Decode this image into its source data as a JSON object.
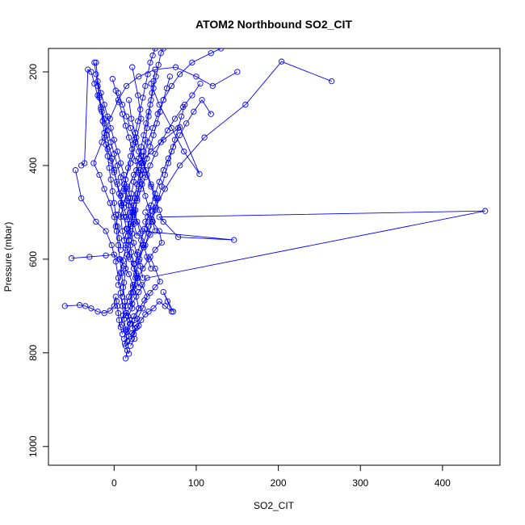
{
  "chart_data": {
    "type": "line",
    "title": "ATOM2 Northbound SO2_CIT",
    "xlabel": "SO2_CIT",
    "ylabel": "Pressure (mbar)",
    "xlim": [
      -80,
      470
    ],
    "ylim": [
      1040,
      150
    ],
    "y_inverted": true,
    "grid": false,
    "legend": "none",
    "marker": "open-circle",
    "x_ticks": [
      0,
      100,
      200,
      300,
      400
    ],
    "y_ticks": [
      200,
      400,
      600,
      800,
      1000
    ],
    "color": "#0000ff",
    "series": [
      {
        "x": [
          14,
          16,
          13,
          18,
          15,
          20,
          17,
          22,
          19,
          21,
          25,
          28,
          24,
          31,
          36,
          44,
          38,
          47,
          52,
          45,
          39,
          33,
          27,
          21,
          18
        ],
        "y": [
          812,
          795,
          780,
          765,
          750,
          738,
          722,
          705,
          690,
          672,
          655,
          640,
          620,
          600,
          575,
          548,
          520,
          498,
          470,
          440,
          410,
          380,
          340,
          300,
          260
        ]
      },
      {
        "x": [
          18,
          14,
          21,
          26,
          19,
          15,
          22,
          30,
          40,
          452,
          55,
          78,
          146,
          35,
          24,
          17,
          12,
          20,
          26,
          33,
          29,
          22
        ],
        "y": [
          802,
          785,
          770,
          748,
          730,
          715,
          695,
          670,
          640,
          497,
          510,
          553,
          559,
          540,
          505,
          470,
          440,
          395,
          350,
          300,
          250,
          190
        ]
      },
      {
        "x": [
          20,
          25,
          22,
          30,
          28,
          35,
          40,
          34,
          27,
          20,
          14,
          10,
          8,
          12,
          16,
          24,
          33,
          45,
          60,
          80,
          104,
          85,
          70,
          55,
          45
        ],
        "y": [
          785,
          770,
          758,
          742,
          727,
          705,
          680,
          655,
          630,
          600,
          570,
          540,
          510,
          480,
          450,
          420,
          395,
          370,
          345,
          318,
          418,
          370,
          320,
          270,
          225
        ]
      },
      {
        "x": [
          10,
          8,
          6,
          5,
          4,
          3,
          2,
          0,
          -5,
          -12,
          -20,
          -28,
          -35,
          -42,
          -60
        ],
        "y": [
          760,
          745,
          730,
          715,
          700,
          690,
          680,
          700,
          710,
          715,
          712,
          705,
          700,
          698,
          700
        ]
      },
      {
        "x": [
          22,
          25,
          30,
          27,
          23,
          18,
          12,
          6,
          0,
          -10,
          -30,
          -52
        ],
        "y": [
          748,
          730,
          705,
          680,
          655,
          632,
          615,
          600,
          590,
          592,
          595,
          598
        ]
      },
      {
        "x": [
          16,
          14,
          12,
          10,
          8,
          5,
          2,
          -3,
          -10,
          -22,
          -40,
          -47
        ],
        "y": [
          775,
          752,
          728,
          700,
          672,
          640,
          605,
          570,
          540,
          520,
          470,
          410
        ]
      },
      {
        "x": [
          24,
          28,
          33,
          38,
          42,
          48,
          55,
          62,
          70,
          65,
          60,
          72
        ],
        "y": [
          760,
          745,
          730,
          718,
          712,
          705,
          690,
          700,
          712,
          690,
          670,
          712
        ]
      },
      {
        "x": [
          12,
          15,
          19,
          24,
          30,
          37,
          44,
          50,
          56,
          50,
          44
        ],
        "y": [
          770,
          755,
          738,
          722,
          705,
          688,
          672,
          660,
          648,
          620,
          595
        ]
      },
      {
        "x": [
          9,
          11,
          14,
          18,
          23,
          29,
          35,
          42,
          50,
          58,
          55,
          47,
          38
        ],
        "y": [
          740,
          720,
          700,
          680,
          660,
          640,
          620,
          600,
          580,
          565,
          540,
          520,
          500
        ]
      },
      {
        "x": [
          15,
          13,
          11,
          9,
          7,
          5,
          3,
          0,
          -5,
          -12,
          -18,
          -25,
          -15,
          -5,
          5,
          15,
          30,
          50,
          75,
          100,
          120,
          150
        ],
        "y": [
          720,
          690,
          660,
          630,
          600,
          570,
          540,
          510,
          480,
          450,
          420,
          395,
          350,
          300,
          260,
          230,
          210,
          195,
          190,
          210,
          230,
          200
        ]
      },
      {
        "x": [
          20,
          23,
          26,
          30,
          35,
          42,
          50,
          62,
          80,
          110,
          160,
          204,
          265
        ],
        "y": [
          700,
          670,
          640,
          605,
          570,
          530,
          490,
          450,
          400,
          340,
          270,
          178,
          220
        ]
      },
      {
        "x": [
          10,
          12,
          14,
          16,
          18,
          20,
          22,
          25,
          28,
          32,
          36,
          41,
          47,
          53,
          60,
          70,
          80,
          95,
          118,
          130
        ],
        "y": [
          680,
          650,
          620,
          590,
          560,
          530,
          500,
          470,
          440,
          410,
          380,
          350,
          320,
          290,
          260,
          230,
          205,
          180,
          160,
          150
        ]
      },
      {
        "x": [
          30,
          27,
          24,
          21,
          18,
          15,
          12,
          9,
          6,
          3,
          0,
          -3,
          -6,
          -9,
          -12,
          -15,
          -18,
          -22
        ],
        "y": [
          660,
          635,
          610,
          585,
          560,
          535,
          510,
          485,
          460,
          435,
          410,
          385,
          360,
          335,
          310,
          285,
          250,
          180
        ]
      },
      {
        "x": [
          5,
          8,
          11,
          14,
          17,
          20,
          24,
          28,
          33,
          38,
          44,
          50,
          57,
          65,
          74,
          84,
          95,
          105
        ],
        "y": [
          655,
          628,
          602,
          576,
          550,
          525,
          500,
          475,
          450,
          425,
          400,
          375,
          350,
          325,
          300,
          275,
          250,
          225
        ]
      },
      {
        "x": [
          35,
          32,
          28,
          24,
          20,
          16,
          12,
          8,
          4,
          0,
          -4,
          -8,
          -12
        ],
        "y": [
          640,
          615,
          590,
          565,
          540,
          515,
          490,
          465,
          440,
          415,
          390,
          365,
          340
        ]
      },
      {
        "x": [
          45,
          40,
          36,
          32,
          28,
          24,
          20,
          16,
          12,
          8,
          4,
          0,
          -4,
          -8,
          -12,
          -16,
          -20
        ],
        "y": [
          620,
          595,
          570,
          545,
          520,
          495,
          470,
          445,
          420,
          395,
          370,
          345,
          320,
          295,
          270,
          245,
          220
        ]
      },
      {
        "x": [
          25,
          29,
          33,
          37,
          41,
          45,
          50,
          55,
          60,
          66,
          72,
          80,
          88,
          97,
          107,
          118
        ],
        "y": [
          610,
          585,
          560,
          535,
          510,
          485,
          460,
          435,
          410,
          385,
          360,
          335,
          310,
          285,
          260,
          290
        ]
      },
      {
        "x": [
          18,
          20,
          22,
          24,
          26,
          28,
          30,
          32,
          34,
          36,
          38,
          40,
          42,
          44,
          46,
          48,
          50
        ],
        "y": [
          595,
          570,
          545,
          520,
          495,
          470,
          445,
          420,
          395,
          370,
          345,
          320,
          295,
          270,
          245,
          220,
          195
        ]
      },
      {
        "x": [
          8,
          6,
          4,
          2,
          0,
          -2,
          -4,
          -6,
          -8,
          -10,
          -12,
          -14,
          -16,
          -18,
          -20,
          -22,
          -24
        ],
        "y": [
          580,
          555,
          530,
          505,
          480,
          455,
          430,
          405,
          380,
          355,
          330,
          305,
          280,
          255,
          230,
          205,
          180
        ]
      },
      {
        "x": [
          38,
          42,
          46,
          50,
          54,
          58,
          62,
          66,
          70,
          74,
          78,
          82,
          86
        ],
        "y": [
          570,
          545,
          520,
          495,
          470,
          445,
          420,
          395,
          370,
          345,
          320,
          295,
          270
        ]
      },
      {
        "x": [
          12,
          16,
          20,
          24,
          28,
          32,
          36,
          40,
          44,
          48,
          52,
          56,
          60,
          64,
          68
        ],
        "y": [
          560,
          535,
          510,
          485,
          460,
          435,
          410,
          385,
          360,
          335,
          310,
          285,
          260,
          235,
          210
        ]
      },
      {
        "x": [
          28,
          24,
          20,
          16,
          12,
          8,
          4,
          0,
          -4,
          -8,
          -12,
          -16,
          -20,
          -24,
          -28,
          -32,
          -36,
          -40
        ],
        "y": [
          550,
          525,
          500,
          475,
          450,
          425,
          400,
          375,
          350,
          325,
          300,
          275,
          250,
          225,
          200,
          195,
          395,
          400
        ]
      },
      {
        "x": [
          50,
          46,
          42,
          38,
          34,
          30,
          26,
          22,
          18,
          14,
          10,
          6,
          2,
          -2
        ],
        "y": [
          540,
          515,
          490,
          465,
          440,
          415,
          390,
          365,
          340,
          315,
          290,
          265,
          240,
          215
        ]
      },
      {
        "x": [
          2,
          5,
          8,
          11,
          14,
          17,
          20,
          23,
          26,
          29,
          32,
          35,
          38,
          41,
          44,
          47,
          50
        ],
        "y": [
          530,
          505,
          480,
          455,
          430,
          405,
          380,
          355,
          330,
          305,
          280,
          255,
          230,
          205,
          180,
          165,
          150
        ]
      },
      {
        "x": [
          60,
          55,
          50,
          45,
          40,
          35,
          30,
          25,
          20,
          15,
          10,
          5
        ],
        "y": [
          520,
          495,
          470,
          445,
          420,
          395,
          370,
          345,
          320,
          295,
          270,
          245
        ]
      },
      {
        "x": [
          15,
          18,
          21,
          24,
          27,
          30,
          33,
          36,
          39,
          42,
          45,
          48,
          51,
          54,
          57,
          60
        ],
        "y": [
          510,
          485,
          460,
          435,
          410,
          385,
          360,
          335,
          310,
          285,
          260,
          235,
          210,
          185,
          160,
          150
        ]
      }
    ]
  }
}
